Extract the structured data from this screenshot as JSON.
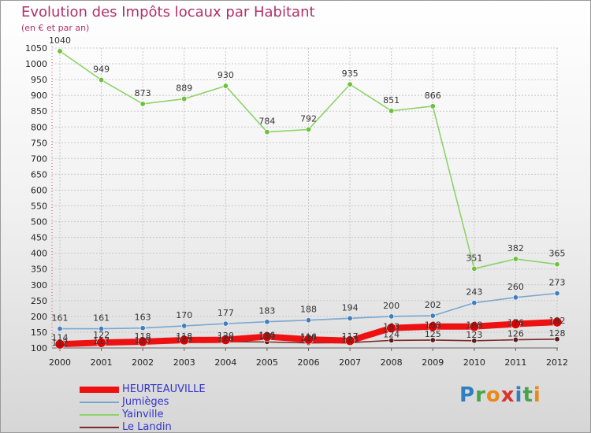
{
  "title": "Evolution des Impôts locaux par Habitant",
  "subtitle": "(en € et par an)",
  "brand": {
    "text": "Proxiti",
    "letters": [
      {
        "ch": "P",
        "color": "#2f7fc1"
      },
      {
        "ch": "r",
        "color": "#4aa34a"
      },
      {
        "ch": "o",
        "color": "#e88a1a"
      },
      {
        "ch": "x",
        "color": "#d9342b"
      },
      {
        "ch": "i",
        "color": "#2f7fc1"
      },
      {
        "ch": "t",
        "color": "#4aa34a"
      },
      {
        "ch": "i",
        "color": "#e88a1a"
      }
    ]
  },
  "chart_data": {
    "type": "line",
    "title": "Evolution des Impôts locaux par Habitant",
    "subtitle": "(en € et par an)",
    "xlabel": "",
    "ylabel": "",
    "ylim": [
      100,
      1050
    ],
    "yticks": [
      100,
      150,
      200,
      250,
      300,
      350,
      400,
      450,
      500,
      550,
      600,
      650,
      700,
      750,
      800,
      850,
      900,
      950,
      1000,
      1050
    ],
    "categories": [
      "2000",
      "2001",
      "2002",
      "2003",
      "2004",
      "2005",
      "2006",
      "2007",
      "2008",
      "2009",
      "2010",
      "2011",
      "2012"
    ],
    "grid": true,
    "legend_position": "bottom-left",
    "series": [
      {
        "name": "Yainville",
        "color": "#8dd36a",
        "marker": "#6cc03e",
        "values": [
          1040,
          949,
          873,
          889,
          930,
          784,
          792,
          935,
          851,
          866,
          351,
          382,
          365
        ]
      },
      {
        "name": "Jumièges",
        "color": "#7aa7d0",
        "marker": "#3f7fc0",
        "values": [
          161,
          161,
          163,
          170,
          177,
          183,
          188,
          194,
          200,
          202,
          243,
          260,
          273
        ]
      },
      {
        "name": "Le Landin",
        "color": "#7a2a2a",
        "marker": "#5a1a1a",
        "values": [
          114,
          122,
          118,
          118,
          120,
          119,
          116,
          117,
          124,
          125,
          123,
          126,
          128
        ]
      },
      {
        "name": "HEURTEAUVILLE",
        "color": "#ee1111",
        "marker": "#dd0000",
        "values": [
          112,
          117,
          120,
          125,
          126,
          136,
          127,
          123,
          163,
          168,
          168,
          176,
          182
        ]
      }
    ],
    "legend_order": [
      "HEURTEAUVILLE",
      "Jumièges",
      "Yainville",
      "Le Landin"
    ]
  }
}
